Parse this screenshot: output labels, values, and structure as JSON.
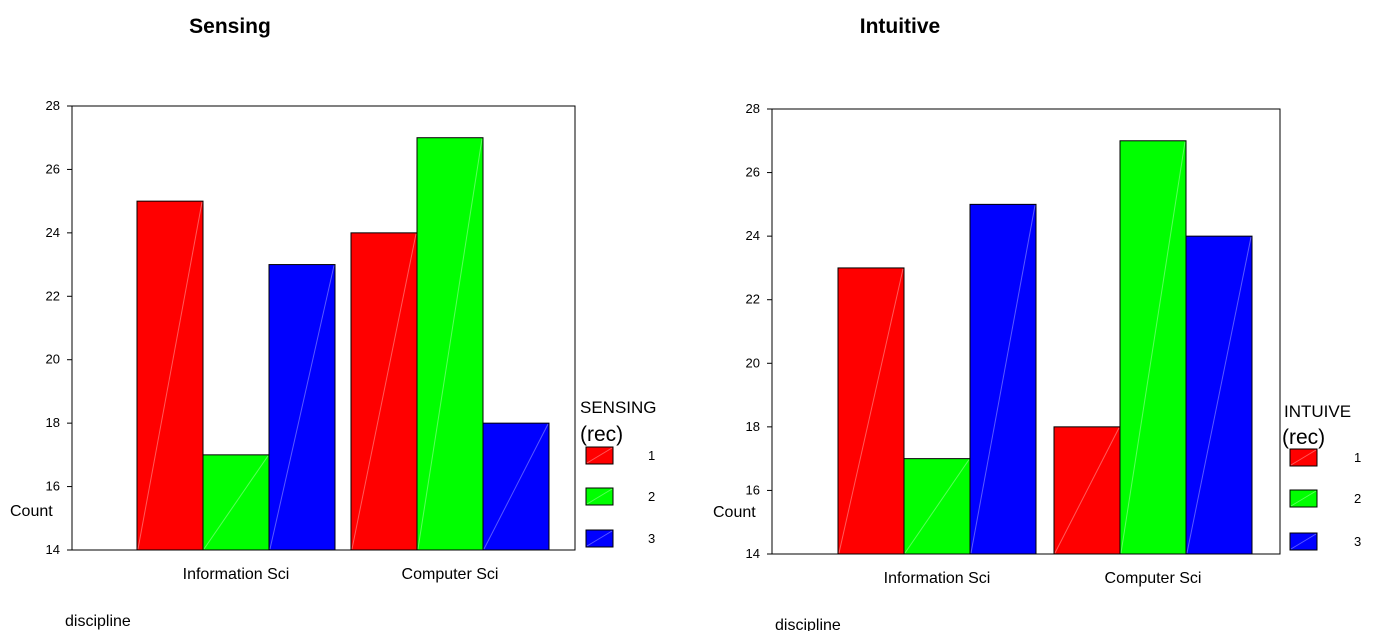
{
  "chart_data": [
    {
      "type": "bar",
      "title": "Sensing",
      "xlabel": "discipline",
      "ylabel": "Count",
      "ylim": [
        14,
        28
      ],
      "yticks": [
        "14",
        "16",
        "18",
        "20",
        "22",
        "24",
        "26",
        "28"
      ],
      "categories": [
        "Information Sci",
        "Computer Sci"
      ],
      "legend_title_line1": "SENSING",
      "legend_title_line2": "(rec)",
      "legend_placement": "right",
      "series": [
        {
          "name": "1",
          "color": "#ff0000",
          "values": [
            25,
            24
          ]
        },
        {
          "name": "2",
          "color": "#00ff00",
          "values": [
            17,
            27
          ]
        },
        {
          "name": "3",
          "color": "#0000ff",
          "values": [
            23,
            18
          ]
        }
      ]
    },
    {
      "type": "bar",
      "title": "Intuitive",
      "xlabel": "discipline",
      "ylabel": "Count",
      "ylim": [
        14,
        28
      ],
      "yticks": [
        "14",
        "16",
        "18",
        "20",
        "22",
        "24",
        "26",
        "28"
      ],
      "categories": [
        "Information Sci",
        "Computer Sci"
      ],
      "legend_title_line1": "INTUIVE",
      "legend_title_line2": "(rec)",
      "legend_placement": "right",
      "series": [
        {
          "name": "1",
          "color": "#ff0000",
          "values": [
            23,
            18
          ]
        },
        {
          "name": "2",
          "color": "#00ff00",
          "values": [
            17,
            27
          ]
        },
        {
          "name": "3",
          "color": "#0000ff",
          "values": [
            25,
            24
          ]
        }
      ]
    }
  ]
}
